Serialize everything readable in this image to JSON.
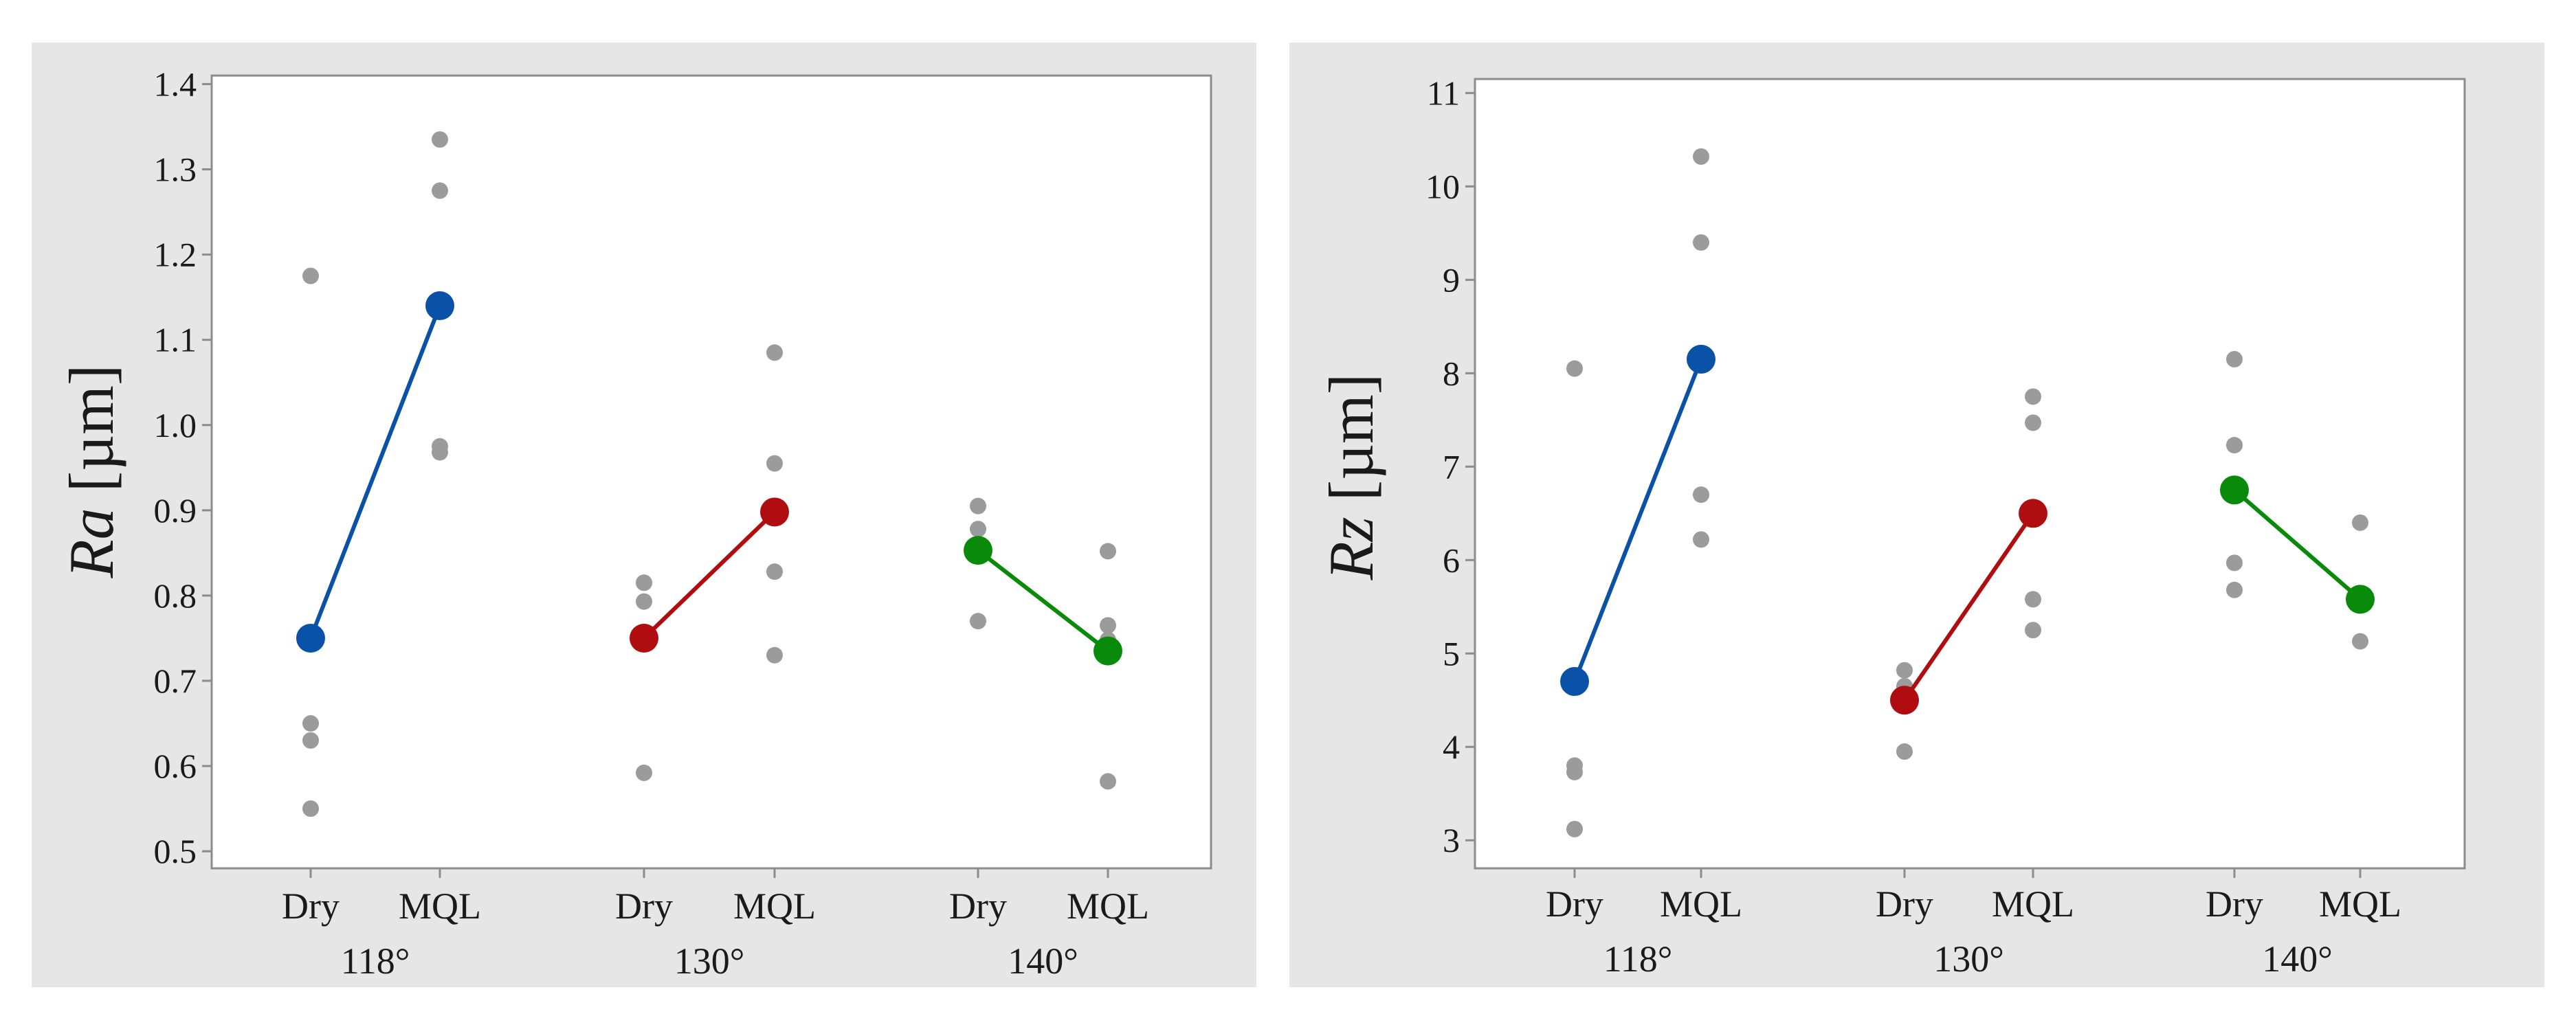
{
  "chart_data": [
    {
      "type": "scatter",
      "title": "",
      "ylabel_italic": "Ra",
      "ylabel_unit": " [µm]",
      "xlabel": "",
      "ylim": [
        0.48,
        1.41
      ],
      "yticks": [
        0.5,
        0.6,
        0.7,
        0.8,
        0.9,
        1.0,
        1.1,
        1.2,
        1.3,
        1.4
      ],
      "ytick_labels": [
        "0.5",
        "0.6",
        "0.7",
        "0.8",
        "0.9",
        "1.0",
        "1.1",
        "1.2",
        "1.3",
        "1.4"
      ],
      "angles": [
        "118°",
        "130°",
        "140°"
      ],
      "conditions": [
        "Dry",
        "MQL"
      ],
      "groups": [
        {
          "angle": "118°",
          "color": "#0a52a8",
          "dry_points": [
            1.175,
            0.65,
            0.63,
            0.55
          ],
          "mql_points": [
            1.335,
            1.275,
            0.975,
            0.968
          ],
          "mean_dry": 0.75,
          "mean_mql": 1.14
        },
        {
          "angle": "130°",
          "color": "#b00d10",
          "dry_points": [
            0.815,
            0.815,
            0.793,
            0.592
          ],
          "mql_points": [
            1.085,
            0.955,
            0.828,
            0.73
          ],
          "mean_dry": 0.75,
          "mean_mql": 0.898
        },
        {
          "angle": "140°",
          "color": "#0a8a0a",
          "dry_points": [
            0.905,
            0.878,
            0.77
          ],
          "mql_points": [
            0.852,
            0.765,
            0.748,
            0.582
          ],
          "mean_dry": 0.853,
          "mean_mql": 0.735
        }
      ]
    },
    {
      "type": "scatter",
      "title": "",
      "ylabel_italic": "Rz",
      "ylabel_unit": " [µm]",
      "xlabel": "",
      "ylim": [
        2.7,
        11.15
      ],
      "yticks": [
        3,
        4,
        5,
        6,
        7,
        8,
        9,
        10,
        11
      ],
      "ytick_labels": [
        "3",
        "4",
        "5",
        "6",
        "7",
        "8",
        "9",
        "10",
        "11"
      ],
      "angles": [
        "118°",
        "130°",
        "140°"
      ],
      "conditions": [
        "Dry",
        "MQL"
      ],
      "groups": [
        {
          "angle": "118°",
          "color": "#0a52a8",
          "dry_points": [
            8.05,
            3.8,
            3.73,
            3.12
          ],
          "mql_points": [
            10.32,
            9.4,
            6.7,
            6.22
          ],
          "mean_dry": 4.7,
          "mean_mql": 8.15
        },
        {
          "angle": "130°",
          "color": "#b00d10",
          "dry_points": [
            4.82,
            4.65,
            3.95
          ],
          "mql_points": [
            7.75,
            7.47,
            5.58,
            5.25
          ],
          "mean_dry": 4.5,
          "mean_mql": 6.5
        },
        {
          "angle": "140°",
          "color": "#0a8a0a",
          "dry_points": [
            8.15,
            7.23,
            5.97,
            5.68
          ],
          "mql_points": [
            6.4,
            5.62,
            5.13
          ],
          "mean_dry": 6.75,
          "mean_mql": 5.58
        }
      ]
    }
  ],
  "style": {
    "panel_bg": "#e6e6e6",
    "plot_bg": "#ffffff",
    "frame": "#8c8c8c",
    "raw_point": "#9b9b9b"
  }
}
